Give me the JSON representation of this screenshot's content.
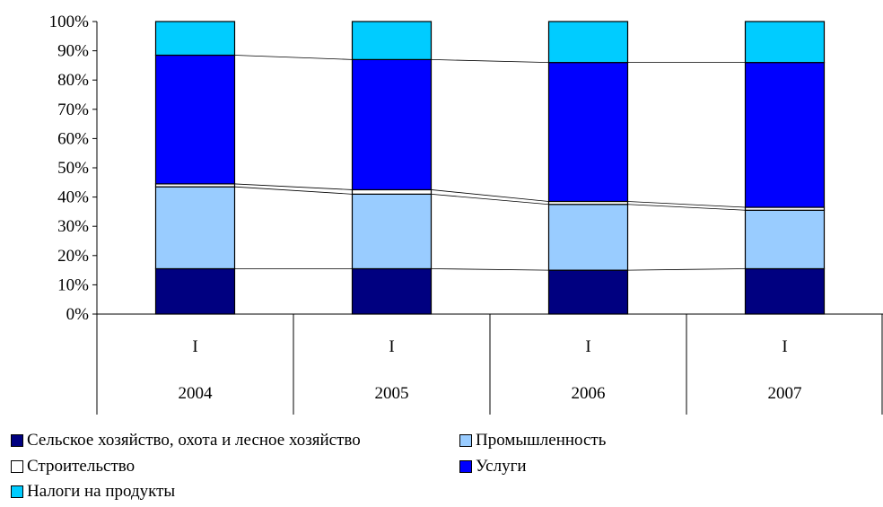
{
  "chart_data": {
    "type": "bar",
    "stacked": true,
    "normalized": true,
    "categories": [
      "2004",
      "2005",
      "2006",
      "2007"
    ],
    "subcategories": [
      "I",
      "I",
      "I",
      "I"
    ],
    "ylim": [
      0,
      100
    ],
    "yticks": [
      "0%",
      "10%",
      "20%",
      "30%",
      "40%",
      "50%",
      "60%",
      "70%",
      "80%",
      "90%",
      "100%"
    ],
    "grid": false,
    "legend_position": "bottom",
    "series": [
      {
        "name": "Сельское хозяйство, охота и лесное хозяйство",
        "color": "#000080",
        "values": [
          15.5,
          15.5,
          15.0,
          15.5
        ]
      },
      {
        "name": "Промышленность",
        "color": "#99CCFF",
        "values": [
          28.0,
          25.5,
          22.5,
          20.0
        ]
      },
      {
        "name": "Строительство",
        "color": "#FFFFFF",
        "values": [
          1.0,
          1.5,
          1.0,
          1.0
        ]
      },
      {
        "name": "Услуги",
        "color": "#0000FF",
        "values": [
          44.0,
          44.5,
          47.5,
          49.5
        ]
      },
      {
        "name": "Налоги на продукты",
        "color": "#00CCFF",
        "values": [
          11.5,
          13.0,
          14.0,
          14.0
        ]
      }
    ]
  }
}
